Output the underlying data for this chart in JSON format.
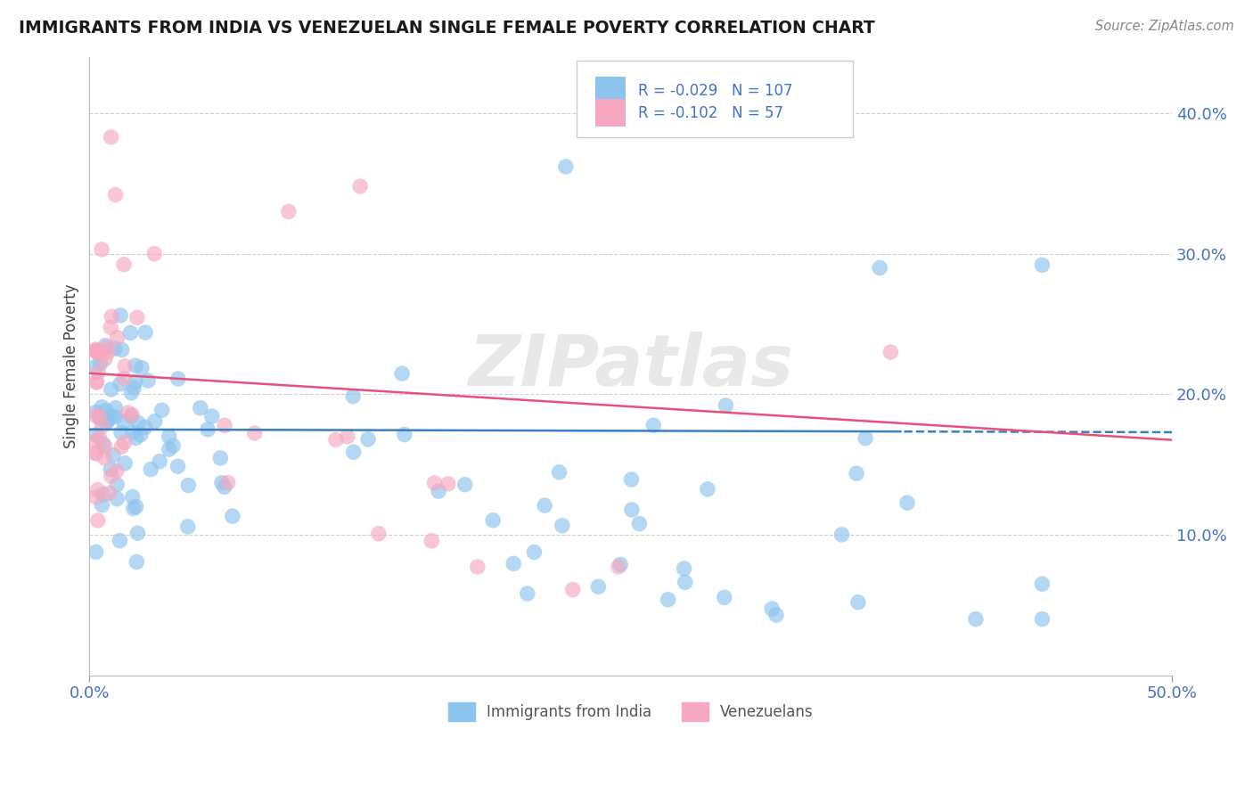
{
  "title": "IMMIGRANTS FROM INDIA VS VENEZUELAN SINGLE FEMALE POVERTY CORRELATION CHART",
  "source": "Source: ZipAtlas.com",
  "ylabel": "Single Female Poverty",
  "xmin": 0.0,
  "xmax": 0.5,
  "ymin": 0.0,
  "ymax": 0.44,
  "R_india": -0.029,
  "N_india": 107,
  "R_venezuela": -0.102,
  "N_venezuela": 57,
  "blue_color": "#8DC4ED",
  "pink_color": "#F5A8C0",
  "blue_line_color": "#3A7FC1",
  "pink_line_color": "#E8507A",
  "title_color": "#1a1a1a",
  "axis_label_color": "#444444",
  "tick_color": "#4472C4",
  "grid_color": "#D0D0D0",
  "legend_border_color": "#CCCCCC",
  "watermark": "ZIPatlas"
}
